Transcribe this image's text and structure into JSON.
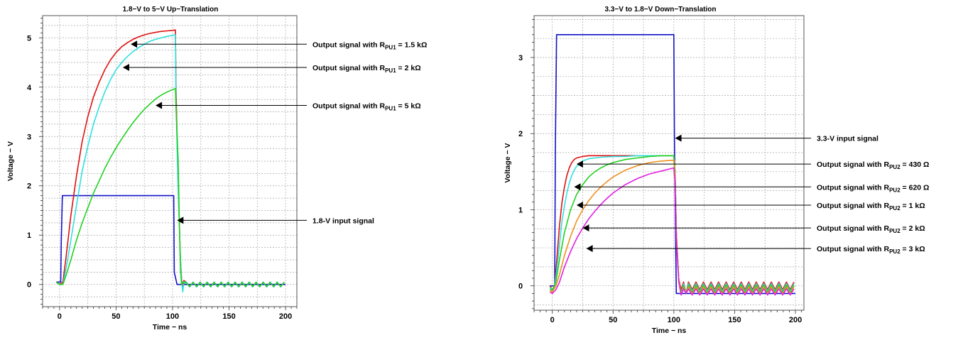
{
  "colors": {
    "input": "#1010c8",
    "red": "#e01010",
    "cyan": "#30e0e0",
    "green": "#20d020",
    "orange": "#f09020",
    "magenta": "#e020e0",
    "grid": "#a8a8a8",
    "annotation": "#000000"
  },
  "chart_data": [
    {
      "type": "line",
      "title": "1.8−V to 5−V Up−Translation",
      "xlabel": "Time − ns",
      "ylabel": "Voltage − V",
      "xlim": [
        -15,
        210
      ],
      "ylim": [
        -0.45,
        5.45
      ],
      "xticks": [
        0,
        50,
        100,
        150,
        200
      ],
      "xtick_labels": [
        "0",
        "50",
        "100",
        "150",
        "200"
      ],
      "yticks": [
        0,
        1,
        2,
        3,
        4,
        5
      ],
      "ytick_labels": [
        "0",
        "1",
        "2",
        "3",
        "4",
        "5"
      ],
      "grid": true,
      "series": [
        {
          "key": "input",
          "color_key": "input",
          "x": [
            -3,
            1,
            1.5,
            2.5,
            101,
            101.5,
            104,
            200
          ],
          "y": [
            0.05,
            0.05,
            0.9,
            1.8,
            1.8,
            0.25,
            0.0,
            0.0
          ]
        },
        {
          "key": "r1",
          "color_key": "red",
          "x": [
            -3,
            0,
            3,
            6,
            10,
            15,
            20,
            25,
            30,
            35,
            40,
            45,
            50,
            55,
            60,
            65,
            70,
            75,
            80,
            85,
            90,
            95,
            100,
            102.5,
            103,
            105,
            107,
            108,
            109,
            110,
            112,
            115,
            120,
            130,
            140,
            150,
            160,
            170,
            180,
            190,
            200
          ],
          "y": [
            0.05,
            0.0,
            0.05,
            0.6,
            1.4,
            2.2,
            2.9,
            3.4,
            3.8,
            4.1,
            4.35,
            4.55,
            4.7,
            4.82,
            4.9,
            4.97,
            5.02,
            5.06,
            5.09,
            5.11,
            5.13,
            5.14,
            5.15,
            5.16,
            4.0,
            2.0,
            0.5,
            0.1,
            -0.05,
            0.08,
            0.0,
            0.05,
            0.04,
            0.06,
            0.04,
            0.06,
            0.04,
            0.06,
            0.04,
            0.06,
            0.05
          ],
          "zigzag_from": 112,
          "zigzag_amp": 0.05
        },
        {
          "key": "c1",
          "color_key": "cyan",
          "x": [
            -3,
            0,
            3,
            6,
            10,
            15,
            20,
            25,
            30,
            35,
            40,
            45,
            50,
            55,
            60,
            65,
            70,
            75,
            80,
            85,
            90,
            95,
            100,
            102.5,
            103,
            105,
            107,
            108,
            109,
            110,
            112,
            115,
            120,
            200
          ],
          "y": [
            0.05,
            0.0,
            0.0,
            0.35,
            0.9,
            1.6,
            2.3,
            2.8,
            3.25,
            3.6,
            3.9,
            4.15,
            4.35,
            4.5,
            4.62,
            4.72,
            4.8,
            4.87,
            4.93,
            4.97,
            5.0,
            5.03,
            5.05,
            5.06,
            3.7,
            1.9,
            0.5,
            0.05,
            -0.15,
            0.05,
            0.0,
            0.03,
            0.03,
            0.03
          ],
          "zigzag_from": 112,
          "zigzag_amp": 0.05
        },
        {
          "key": "g1",
          "color_key": "green",
          "x": [
            -3,
            0,
            3,
            6,
            10,
            15,
            20,
            25,
            30,
            35,
            40,
            45,
            50,
            55,
            60,
            65,
            70,
            75,
            80,
            85,
            90,
            95,
            100,
            102.5,
            103,
            105,
            106,
            107,
            108,
            109,
            110,
            112,
            115,
            120,
            200
          ],
          "y": [
            0.05,
            0.0,
            0.0,
            0.2,
            0.5,
            0.9,
            1.25,
            1.55,
            1.85,
            2.1,
            2.35,
            2.57,
            2.77,
            2.95,
            3.12,
            3.28,
            3.42,
            3.55,
            3.66,
            3.76,
            3.84,
            3.9,
            3.95,
            3.97,
            3.6,
            2.5,
            1.3,
            0.3,
            0.0,
            0.05,
            0.02,
            0.0,
            0.02,
            0.02,
            0.02
          ],
          "zigzag_from": 112,
          "zigzag_amp": 0.04
        }
      ],
      "annotations": [
        {
          "prefix": "Output signal with R",
          "sub": "PU1",
          "suffix": " = 1.5 kΩ",
          "arrow_x": 63,
          "arrow_y": 4.87
        },
        {
          "prefix": "Output signal with R",
          "sub": "PU1",
          "suffix": " = 2 kΩ",
          "arrow_x": 56,
          "arrow_y": 4.4
        },
        {
          "prefix": "Output signal with R",
          "sub": "PU1",
          "suffix": " = 5 kΩ",
          "arrow_x": 85,
          "arrow_y": 3.63
        },
        {
          "prefix": "1.8-V input signal",
          "sub": "",
          "suffix": "",
          "arrow_x": 104,
          "arrow_y": 1.3
        }
      ]
    },
    {
      "type": "line",
      "title": "3.3−V to 1.8−V Down−Translation",
      "xlabel": "Time − ns",
      "ylabel": "Voltage − V",
      "xlim": [
        -15,
        207
      ],
      "ylim": [
        -0.32,
        3.55
      ],
      "xticks": [
        0,
        50,
        100,
        150,
        200
      ],
      "xtick_labels": [
        "0",
        "50",
        "100",
        "150",
        "200"
      ],
      "yticks": [
        0,
        1,
        2,
        3
      ],
      "ytick_labels": [
        "0",
        "1",
        "2",
        "3"
      ],
      "grid": true,
      "series": [
        {
          "key": "input",
          "color_key": "input",
          "x": [
            -2,
            2,
            2.5,
            3.5,
            100,
            100.5,
            102,
            200
          ],
          "y": [
            0.0,
            0.0,
            1.8,
            3.3,
            3.3,
            1.9,
            -0.1,
            -0.1
          ]
        },
        {
          "key": "r2",
          "color_key": "red",
          "x": [
            -2,
            0,
            2,
            4,
            6,
            8,
            10,
            12,
            14,
            16,
            18,
            20,
            25,
            30,
            40,
            50,
            60,
            70,
            80,
            90,
            100,
            101,
            102,
            104,
            106,
            108,
            110,
            112,
            200
          ],
          "y": [
            0.0,
            -0.05,
            0.0,
            0.4,
            0.8,
            1.1,
            1.3,
            1.45,
            1.55,
            1.62,
            1.66,
            1.68,
            1.7,
            1.71,
            1.71,
            1.71,
            1.71,
            1.71,
            1.71,
            1.71,
            1.71,
            1.5,
            0.7,
            0.1,
            -0.05,
            0.05,
            -0.1,
            0.0,
            0.0
          ],
          "zigzag_from": 112,
          "zigzag_amp": 0.05
        },
        {
          "key": "c2",
          "color_key": "cyan",
          "x": [
            -2,
            0,
            2,
            4,
            6,
            8,
            10,
            12,
            14,
            16,
            18,
            20,
            25,
            30,
            40,
            50,
            60,
            70,
            80,
            90,
            100,
            101,
            102,
            104,
            106,
            108,
            110,
            112,
            200
          ],
          "y": [
            -0.02,
            -0.05,
            0.0,
            0.25,
            0.55,
            0.85,
            1.05,
            1.22,
            1.35,
            1.45,
            1.52,
            1.57,
            1.64,
            1.67,
            1.69,
            1.7,
            1.7,
            1.71,
            1.71,
            1.71,
            1.71,
            1.5,
            0.7,
            0.1,
            -0.1,
            0.03,
            -0.1,
            -0.02,
            -0.02
          ],
          "zigzag_from": 112,
          "zigzag_amp": 0.05
        },
        {
          "key": "g2",
          "color_key": "green",
          "x": [
            -2,
            0,
            3,
            6,
            10,
            15,
            20,
            25,
            30,
            35,
            40,
            45,
            50,
            60,
            70,
            80,
            90,
            100,
            101,
            102,
            104,
            106,
            108,
            110,
            112,
            200
          ],
          "y": [
            -0.04,
            -0.06,
            0.05,
            0.35,
            0.7,
            1.0,
            1.2,
            1.33,
            1.43,
            1.5,
            1.55,
            1.59,
            1.62,
            1.66,
            1.68,
            1.7,
            1.71,
            1.71,
            1.5,
            0.7,
            0.1,
            -0.1,
            0.0,
            -0.1,
            -0.04,
            -0.04
          ],
          "zigzag_from": 112,
          "zigzag_amp": 0.05
        },
        {
          "key": "o2",
          "color_key": "orange",
          "x": [
            -2,
            0,
            3,
            6,
            10,
            15,
            20,
            25,
            30,
            35,
            40,
            45,
            50,
            60,
            70,
            80,
            90,
            100,
            101,
            102,
            104,
            106,
            108,
            110,
            112,
            200
          ],
          "y": [
            -0.06,
            -0.08,
            0.0,
            0.15,
            0.4,
            0.65,
            0.85,
            1.0,
            1.12,
            1.22,
            1.3,
            1.37,
            1.43,
            1.52,
            1.58,
            1.62,
            1.64,
            1.65,
            1.45,
            0.7,
            0.1,
            -0.12,
            -0.02,
            -0.1,
            -0.06,
            -0.06
          ],
          "zigzag_from": 112,
          "zigzag_amp": 0.05
        },
        {
          "key": "m2",
          "color_key": "magenta",
          "x": [
            -2,
            0,
            3,
            6,
            10,
            15,
            20,
            25,
            30,
            35,
            40,
            45,
            50,
            60,
            70,
            80,
            90,
            100,
            101,
            102,
            104,
            106,
            108,
            110,
            112,
            200
          ],
          "y": [
            -0.08,
            -0.1,
            -0.05,
            0.05,
            0.25,
            0.45,
            0.62,
            0.76,
            0.88,
            0.98,
            1.07,
            1.15,
            1.22,
            1.33,
            1.41,
            1.47,
            1.51,
            1.55,
            1.35,
            0.6,
            0.05,
            -0.12,
            -0.04,
            -0.1,
            -0.08,
            -0.08
          ],
          "zigzag_from": 112,
          "zigzag_amp": 0.04
        }
      ],
      "annotations": [
        {
          "prefix": "3.3-V input signal",
          "sub": "",
          "suffix": "",
          "arrow_x": 101,
          "arrow_y": 1.94
        },
        {
          "prefix": "Output signal with R",
          "sub": "PU2",
          "suffix": " = 430 Ω",
          "arrow_x": 20,
          "arrow_y": 1.6
        },
        {
          "prefix": "Output signal with R",
          "sub": "PU2",
          "suffix": " = 620 Ω",
          "arrow_x": 18,
          "arrow_y": 1.3
        },
        {
          "prefix": "Output signal with R",
          "sub": "PU2",
          "suffix": " = 1 kΩ",
          "arrow_x": 20,
          "arrow_y": 1.06
        },
        {
          "prefix": "Output signal with R",
          "sub": "PU2",
          "suffix": " = 2 kΩ",
          "arrow_x": 25,
          "arrow_y": 0.76
        },
        {
          "prefix": "Output signal with R",
          "sub": "PU2",
          "suffix": " = 3 kΩ",
          "arrow_x": 28,
          "arrow_y": 0.49
        }
      ]
    }
  ]
}
